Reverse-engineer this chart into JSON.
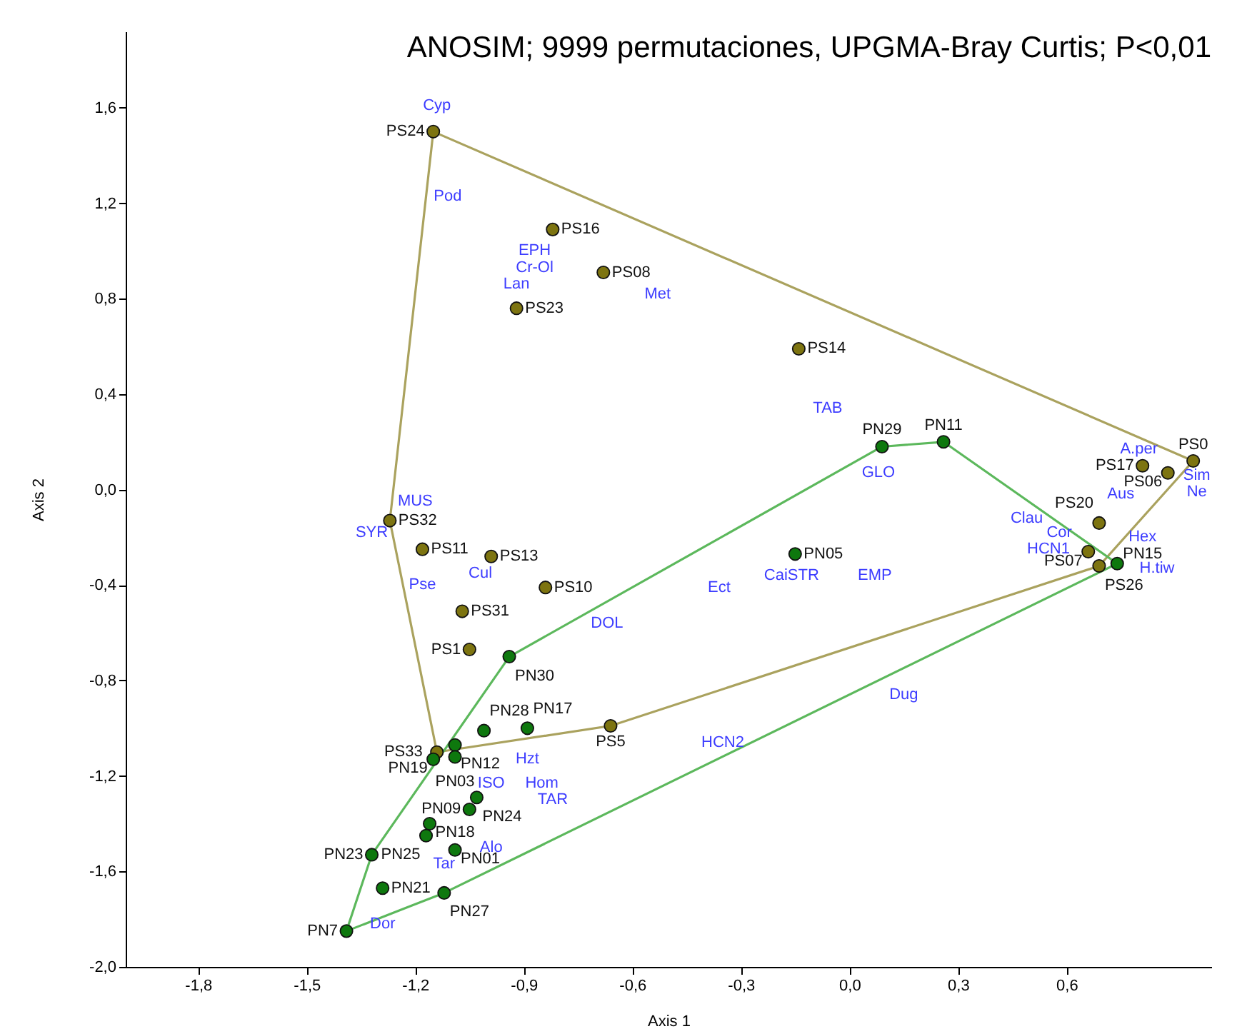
{
  "chart_data": {
    "type": "scatter",
    "title": "ANOSIM; 9999 permutaciones, UPGMA-Bray Curtis; P<0,01",
    "xlabel": "Axis 1",
    "ylabel": "Axis 2",
    "marker": "circle",
    "xlim": [
      -2.0,
      1.0
    ],
    "ylim": [
      -2.0,
      1.92
    ],
    "xticks": [
      {
        "value": -1.8,
        "label": "-1,8"
      },
      {
        "value": -1.5,
        "label": "-1,5"
      },
      {
        "value": -1.2,
        "label": "-1,2"
      },
      {
        "value": -0.9,
        "label": "-0,9"
      },
      {
        "value": -0.6,
        "label": "-0,6"
      },
      {
        "value": -0.3,
        "label": "-0,3"
      },
      {
        "value": 0,
        "label": "0,0"
      },
      {
        "value": 0.3,
        "label": "0,3"
      },
      {
        "value": 0.6,
        "label": "0,6"
      }
    ],
    "yticks": [
      {
        "value": -2.0,
        "label": "-2,0"
      },
      {
        "value": -1.6,
        "label": "-1,6"
      },
      {
        "value": -1.2,
        "label": "-1,2"
      },
      {
        "value": -0.8,
        "label": "-0,8"
      },
      {
        "value": -0.4,
        "label": "-0,4"
      },
      {
        "value": 0,
        "label": "0,0"
      },
      {
        "value": 0.4,
        "label": "0,4"
      },
      {
        "value": 0.8,
        "label": "0,8"
      },
      {
        "value": 1.2,
        "label": "1,2"
      },
      {
        "value": 1.6,
        "label": "1,6"
      }
    ],
    "series": [
      {
        "type": "line",
        "marker": "none",
        "color": "#aaa25e",
        "x": [
          -1.27,
          -1.15,
          0.95
        ],
        "values": [
          -0.13,
          1.5,
          0.12
        ]
      },
      {
        "type": "line",
        "marker": "none",
        "color": "#aaa25e",
        "x": [
          -1.27,
          -1.14,
          -0.66,
          0.69,
          0.95
        ],
        "values": [
          -0.13,
          -1.1,
          -0.99,
          -0.32,
          0.12
        ]
      },
      {
        "type": "line",
        "marker": "none",
        "color": "#5cb85c",
        "x": [
          -1.39,
          -1.32,
          -0.94,
          0.09,
          0.26,
          0.74
        ],
        "values": [
          -1.85,
          -1.53,
          -0.7,
          0.18,
          0.2,
          -0.31
        ]
      },
      {
        "type": "line",
        "marker": "none",
        "color": "#5cb85c",
        "x": [
          -1.39,
          -1.12,
          0.74
        ],
        "values": [
          -1.85,
          -1.69,
          -0.31
        ]
      },
      {
        "color": "#7d7410",
        "x": [
          -1.15,
          -0.82,
          -0.68,
          -0.92,
          -0.14,
          0.95,
          0.81,
          0.88,
          0.69,
          0.66,
          0.69,
          -1.27,
          -1.18,
          -0.99,
          -0.84,
          -1.07,
          -1.05,
          -0.66,
          -1.14
        ],
        "values": [
          1.5,
          1.09,
          0.91,
          0.76,
          0.59,
          0.12,
          0.1,
          0.07,
          -0.14,
          -0.26,
          -0.32,
          -0.13,
          -0.25,
          -0.28,
          -0.41,
          -0.51,
          -0.67,
          -0.99,
          -1.1
        ],
        "value_labels": [
          "PS24",
          "PS16",
          "PS08",
          "PS23",
          "PS14",
          "PS0",
          "PS17",
          "PS06",
          "PS20",
          "PS07",
          "PS26",
          "PS32",
          "PS11",
          "PS13",
          "PS10",
          "PS31",
          "PS1",
          "PS5",
          "PS33"
        ]
      },
      {
        "color": "#0e780e",
        "x": [
          0.09,
          0.26,
          -0.15,
          0.74,
          -0.94,
          -1.01,
          -0.89,
          -1.09,
          -1.09,
          -1.15,
          -1.03,
          -1.05,
          -1.16,
          -1.17,
          -1.09,
          -1.32,
          -1.29,
          -1.12,
          -1.39
        ],
        "values": [
          0.18,
          0.2,
          -0.27,
          -0.31,
          -0.7,
          -1.01,
          -1.0,
          -1.07,
          -1.12,
          -1.13,
          -1.29,
          -1.34,
          -1.4,
          -1.45,
          -1.51,
          -1.53,
          -1.67,
          -1.69,
          -1.85
        ],
        "value_labels": [
          "PN29",
          "PN11",
          "PN05",
          "PN15",
          "PN30",
          "PN28",
          "PN17",
          "PN12",
          "PN03",
          "PN19",
          "PN24",
          "PN09",
          "PN18",
          "PN25",
          "PN01",
          "PN23",
          "PN21",
          "PN27",
          "PN7"
        ]
      }
    ],
    "annotations": [
      "Cyp",
      "Pod",
      "EPH",
      "Cr-Ol",
      "Lan",
      "Met",
      "TAB",
      "GLO",
      "A.per",
      "Aus",
      "Sim",
      "Ne",
      "Clau",
      "Cor",
      "HCN1",
      "Hex",
      "H.tiw",
      "CaiSTR",
      "EMP",
      "Ect",
      "MUS",
      "SYR",
      "Cul",
      "Pse",
      "DOL",
      "Dug",
      "HCN2",
      "Hzt",
      "ISO",
      "Hom",
      "TAR",
      "Alo",
      "Tar",
      "Dor"
    ]
  }
}
